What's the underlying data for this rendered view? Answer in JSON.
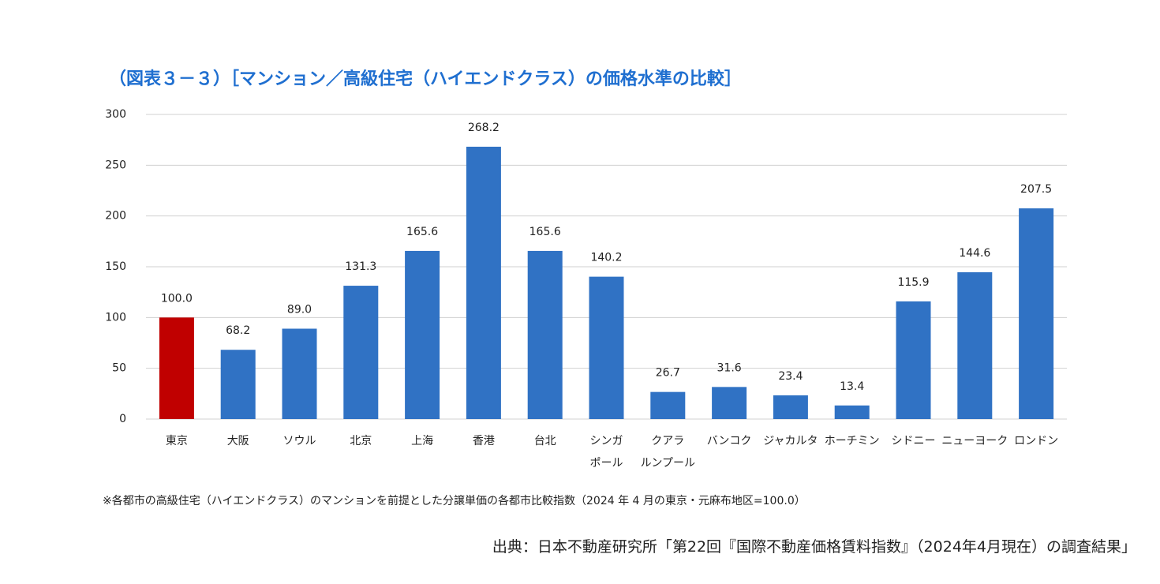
{
  "chart_data": {
    "type": "bar",
    "title": "（図表３－３）［マンション／高級住宅（ハイエンドクラス）の価格水準の比較］",
    "categories": [
      "東京",
      "大阪",
      "ソウル",
      "北京",
      "上海",
      "香港",
      "台北",
      "シンガ\nポール",
      "クアラ\nルンプール",
      "バンコク",
      "ジャカルタ",
      "ホーチミン",
      "シドニー",
      "ニューヨーク",
      "ロンドン"
    ],
    "values": [
      100,
      68.2,
      89,
      131.3,
      165.6,
      268.2,
      165.6,
      140.2,
      26.7,
      31.6,
      23.4,
      13.4,
      115.9,
      144.6,
      207.5
    ],
    "value_labels": [
      "100.0",
      "68.2",
      "89.0",
      "131.3",
      "165.6",
      "268.2",
      "165.6",
      "140.2",
      "26.7",
      "31.6",
      "23.4",
      "13.4",
      "115.9",
      "144.6",
      "207.5"
    ],
    "colors": [
      "#c00000",
      "#3072c4",
      "#3072c4",
      "#3072c4",
      "#3072c4",
      "#3072c4",
      "#3072c4",
      "#3072c4",
      "#3072c4",
      "#3072c4",
      "#3072c4",
      "#3072c4",
      "#3072c4",
      "#3072c4",
      "#3072c4"
    ],
    "ylim": [
      0,
      300
    ],
    "yticks": [
      0,
      50,
      100,
      150,
      200,
      250,
      300
    ],
    "grid": true,
    "note": "※各都市の高級住宅（ハイエンドクラス）のマンションを前提とした分譲単価の各都市比較指数（2024 年 4 月の東京・元麻布地区=100.0）",
    "source": "出典：日本不動産研究所「第22回『国際不動産価格賃料指数』（2024年4月現在）の調査結果」"
  }
}
